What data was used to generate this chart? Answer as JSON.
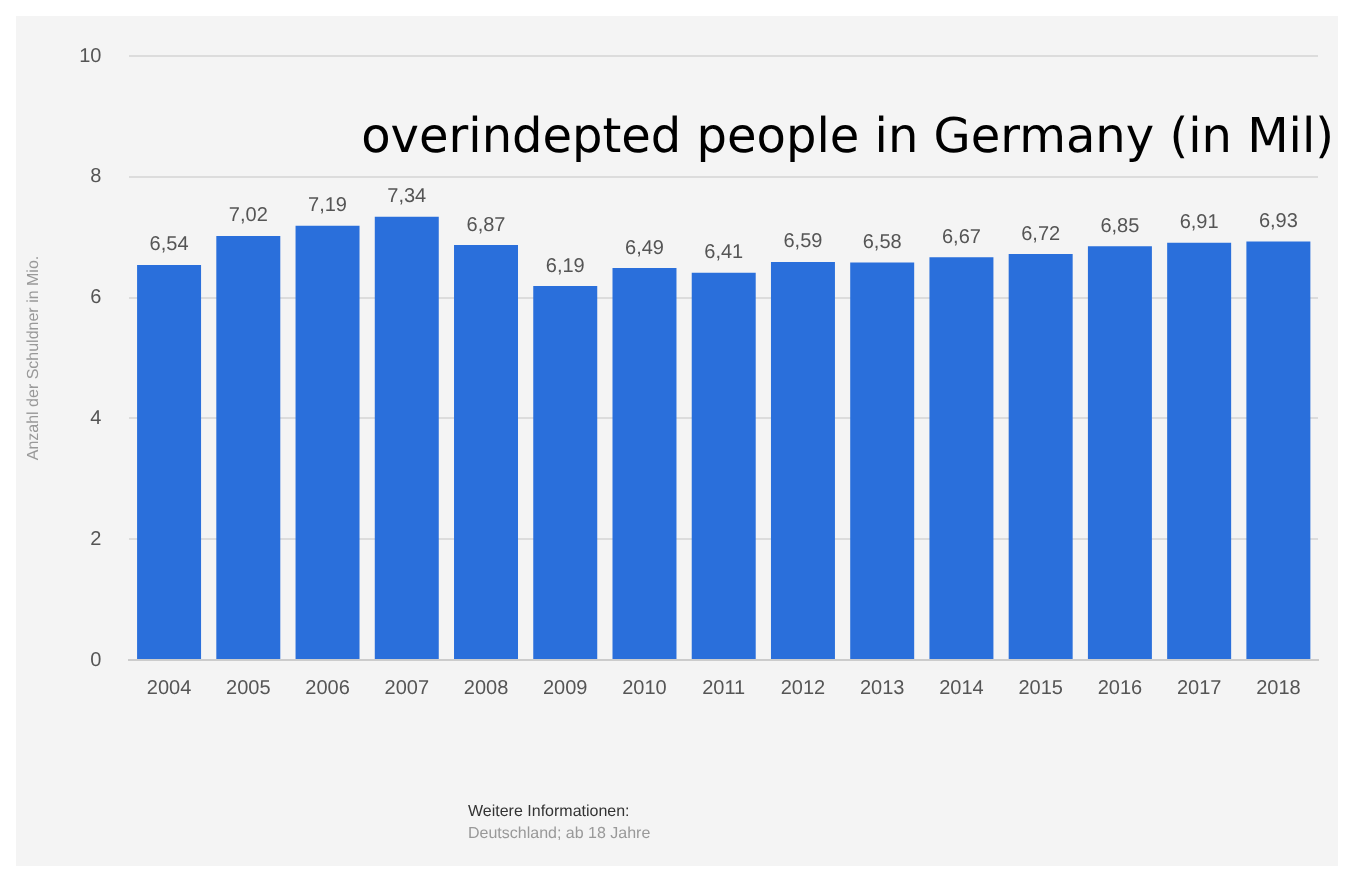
{
  "chart_data": {
    "type": "bar",
    "title": "overindepted people in Germany (in Mil)",
    "ylabel": "Anzahl der Schuldner in Mio.",
    "categories": [
      "2004",
      "2005",
      "2006",
      "2007",
      "2008",
      "2009",
      "2010",
      "2011",
      "2012",
      "2013",
      "2014",
      "2015",
      "2016",
      "2017",
      "2018"
    ],
    "values": [
      6.54,
      7.02,
      7.19,
      7.34,
      6.87,
      6.19,
      6.49,
      6.41,
      6.59,
      6.58,
      6.67,
      6.72,
      6.85,
      6.91,
      6.93
    ],
    "value_labels": [
      "6,54",
      "7,02",
      "7,19",
      "7,34",
      "6,87",
      "6,19",
      "6,49",
      "6,41",
      "6,59",
      "6,58",
      "6,67",
      "6,72",
      "6,85",
      "6,91",
      "6,93"
    ],
    "color": "#2a6fdb",
    "ylim": [
      0,
      10
    ],
    "yticks": [
      0,
      2,
      4,
      6,
      8,
      10
    ],
    "grid": "y",
    "legend": false,
    "annotations": [
      "Weitere Informationen:",
      "Deutschland; ab 18 Jahre"
    ]
  }
}
